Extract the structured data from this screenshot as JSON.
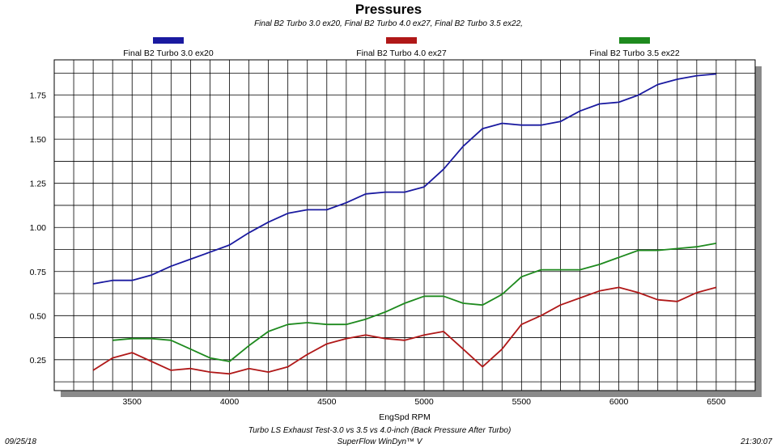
{
  "chart_data": {
    "type": "line",
    "title": "Pressures",
    "subtitle": "Final B2 Turbo 3.0 ex20, Final B2 Turbo 4.0 ex27, Final B2 Turbo 3.5 ex22,",
    "xlabel": "EngSpd RPM",
    "ylabel": "",
    "xlim": [
      3100,
      6700
    ],
    "ylim": [
      0.075,
      1.95
    ],
    "x_ticks": [
      "3500",
      "4000",
      "4500",
      "5000",
      "5500",
      "6000",
      "6500"
    ],
    "y_ticks": [
      "0.25",
      "0.50",
      "0.75",
      "1.00",
      "1.25",
      "1.50",
      "1.75"
    ],
    "grid": true,
    "legend_position": "top",
    "series": [
      {
        "name": "Final B2 Turbo 3.0 ex20",
        "color": "#1a1aa0",
        "x": [
          3300,
          3400,
          3500,
          3600,
          3700,
          3800,
          3900,
          4000,
          4100,
          4200,
          4300,
          4400,
          4500,
          4600,
          4700,
          4800,
          4900,
          5000,
          5100,
          5200,
          5300,
          5400,
          5500,
          5600,
          5700,
          5800,
          5900,
          6000,
          6100,
          6200,
          6300,
          6400,
          6500
        ],
        "y": [
          0.68,
          0.7,
          0.7,
          0.73,
          0.78,
          0.82,
          0.86,
          0.9,
          0.97,
          1.03,
          1.08,
          1.1,
          1.1,
          1.14,
          1.19,
          1.2,
          1.2,
          1.23,
          1.33,
          1.46,
          1.56,
          1.59,
          1.58,
          1.58,
          1.6,
          1.66,
          1.7,
          1.71,
          1.75,
          1.81,
          1.84,
          1.86,
          1.87
        ]
      },
      {
        "name": "Final B2 Turbo 4.0 ex27",
        "color": "#b01818",
        "x": [
          3300,
          3400,
          3500,
          3600,
          3700,
          3800,
          3900,
          4000,
          4100,
          4200,
          4300,
          4400,
          4500,
          4600,
          4700,
          4800,
          4900,
          5000,
          5100,
          5200,
          5300,
          5400,
          5500,
          5600,
          5700,
          5800,
          5900,
          6000,
          6100,
          6200,
          6300,
          6400,
          6500
        ],
        "y": [
          0.19,
          0.26,
          0.29,
          0.24,
          0.19,
          0.2,
          0.18,
          0.17,
          0.2,
          0.18,
          0.21,
          0.28,
          0.34,
          0.37,
          0.39,
          0.37,
          0.36,
          0.39,
          0.41,
          0.31,
          0.21,
          0.31,
          0.45,
          0.5,
          0.56,
          0.6,
          0.64,
          0.66,
          0.63,
          0.59,
          0.58,
          0.63,
          0.66
        ]
      },
      {
        "name": "Final B2 Turbo 3.5 ex22",
        "color": "#1e8a1e",
        "x": [
          3400,
          3500,
          3600,
          3700,
          3800,
          3900,
          4000,
          4100,
          4200,
          4300,
          4400,
          4500,
          4600,
          4700,
          4800,
          4900,
          5000,
          5100,
          5200,
          5300,
          5400,
          5500,
          5600,
          5700,
          5800,
          5900,
          6000,
          6100,
          6200,
          6300,
          6400,
          6500
        ],
        "y": [
          0.36,
          0.37,
          0.37,
          0.36,
          0.31,
          0.26,
          0.24,
          0.33,
          0.41,
          0.45,
          0.46,
          0.45,
          0.45,
          0.48,
          0.52,
          0.57,
          0.61,
          0.61,
          0.57,
          0.56,
          0.62,
          0.72,
          0.76,
          0.76,
          0.76,
          0.79,
          0.83,
          0.87,
          0.87,
          0.88,
          0.89,
          0.91
        ]
      }
    ]
  },
  "footer": {
    "date": "09/25/18",
    "time": "21:30:07",
    "caption": "Turbo LS Exhaust Test-3.0 vs 3.5 vs 4.0-inch (Back Pressure After Turbo)",
    "software": "SuperFlow WinDyn™ V"
  }
}
